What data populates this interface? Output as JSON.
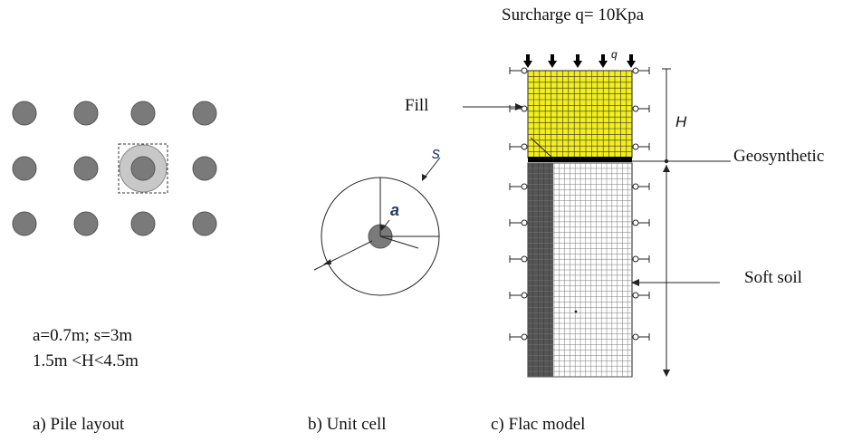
{
  "pile_layout": {
    "params_line1": "a=0.7m; s=3m",
    "params_line2": "1.5m <H<4.5m",
    "caption": "a) Pile layout"
  },
  "unit_cell": {
    "label_s": "s",
    "label_a": "a",
    "caption": "b) Unit cell"
  },
  "flac_model": {
    "surcharge": "Surcharge q= 10Kpa",
    "label_q": "q",
    "label_H": "H",
    "label_fill": "Fill",
    "label_geosynthetic": "Geosynthetic",
    "label_soft_soil": "Soft soil",
    "caption": "c) Flac model"
  },
  "colors": {
    "pile": "#7a7a7a",
    "pile_outline": "#555555",
    "influence_zone": "#c8c8c8",
    "fill_layer": "#f2ee1c",
    "pile_column": "#555555",
    "geosynthetic": "#000000"
  }
}
